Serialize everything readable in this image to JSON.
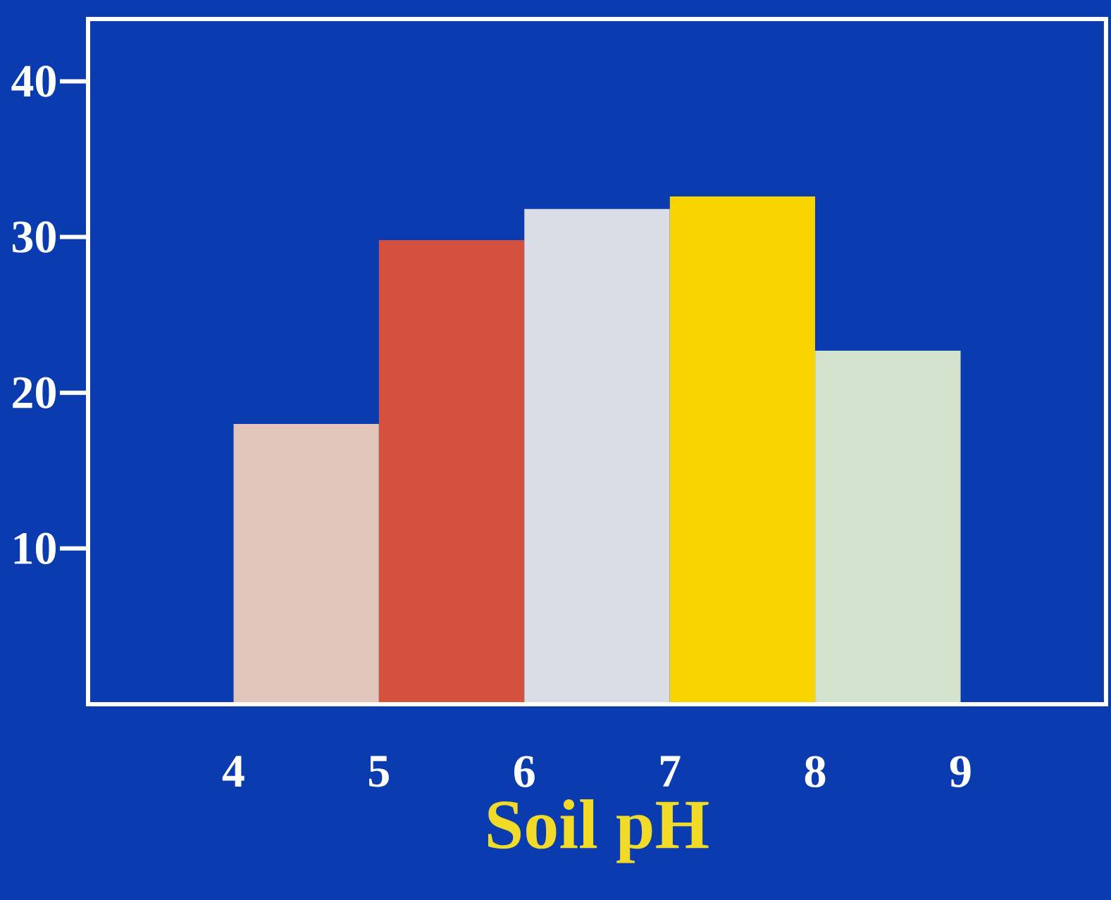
{
  "chart_data": {
    "type": "histogram",
    "xlabel": "Soil pH",
    "bins": [
      4,
      5,
      6,
      7,
      8,
      9
    ],
    "values": [
      18,
      29.8,
      31.8,
      32.6,
      22.7
    ],
    "colors": [
      "#e2c6bc",
      "#d4503f",
      "#dcdce6",
      "#f8d400",
      "#d2e2cc"
    ],
    "xlim": [
      3,
      10
    ],
    "ylim": [
      0,
      44
    ],
    "xticks": [
      4,
      5,
      6,
      7,
      8,
      9
    ],
    "yticks": [
      10,
      20,
      30,
      40
    ]
  }
}
